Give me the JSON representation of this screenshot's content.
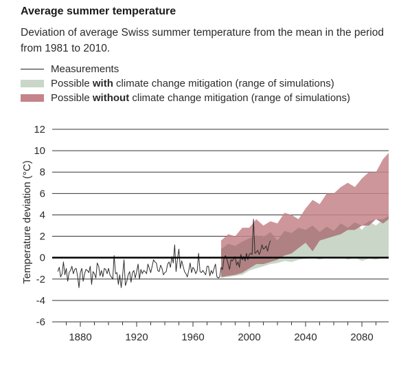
{
  "title": "Average summer temperature",
  "subtitle": "Deviation of average Swiss summer temperature from the mean in the period from 1981 to 2010.",
  "legend": {
    "measurements": "Measurements",
    "with_pre": "Possible ",
    "with_bold": "with",
    "with_post": " climate change mitigation (range of simulations)",
    "without_pre": "Possible ",
    "without_bold": "without",
    "without_post": " climate change mitigation (range of simulations)"
  },
  "colors": {
    "measurements": "#2b2b2b",
    "with_mitigation": "#c9d6c8",
    "without_mitigation": "#c4848a",
    "overlap": "#9c7474",
    "gridline": "#333333",
    "zero_line": "#000000"
  },
  "chart_data": {
    "type": "line",
    "title": "Average summer temperature",
    "xlabel": "",
    "ylabel": "Temperature deviation (°C)",
    "xlim": [
      1860,
      2099
    ],
    "ylim": [
      -6,
      12
    ],
    "y_ticks": [
      12,
      10,
      8,
      6,
      4,
      2,
      0,
      -2,
      -4,
      -6
    ],
    "x_tick_labels": [
      1880,
      1920,
      1960,
      2000,
      2040,
      2080
    ],
    "grid": "horizontal",
    "measurements": {
      "name": "Measurements",
      "x": [
        1864,
        1865,
        1866,
        1867,
        1868,
        1869,
        1870,
        1871,
        1872,
        1873,
        1874,
        1875,
        1876,
        1877,
        1878,
        1879,
        1880,
        1881,
        1882,
        1883,
        1884,
        1885,
        1886,
        1887,
        1888,
        1889,
        1890,
        1891,
        1892,
        1893,
        1894,
        1895,
        1896,
        1897,
        1898,
        1899,
        1900,
        1901,
        1902,
        1903,
        1904,
        1905,
        1906,
        1907,
        1908,
        1909,
        1910,
        1911,
        1912,
        1913,
        1914,
        1915,
        1916,
        1917,
        1918,
        1919,
        1920,
        1921,
        1922,
        1923,
        1924,
        1925,
        1926,
        1927,
        1928,
        1929,
        1930,
        1931,
        1932,
        1933,
        1934,
        1935,
        1936,
        1937,
        1938,
        1939,
        1940,
        1941,
        1942,
        1943,
        1944,
        1945,
        1946,
        1947,
        1948,
        1949,
        1950,
        1951,
        1952,
        1953,
        1954,
        1955,
        1956,
        1957,
        1958,
        1959,
        1960,
        1961,
        1962,
        1963,
        1964,
        1965,
        1966,
        1967,
        1968,
        1969,
        1970,
        1971,
        1972,
        1973,
        1974,
        1975,
        1976,
        1977,
        1978,
        1979,
        1980,
        1981,
        1982,
        1983,
        1984,
        1985,
        1986,
        1987,
        1988,
        1989,
        1990,
        1991,
        1992,
        1993,
        1994,
        1995,
        1996,
        1997,
        1998,
        1999,
        2000,
        2001,
        2002,
        2003,
        2004,
        2005,
        2006,
        2007,
        2008,
        2009,
        2010,
        2011,
        2012,
        2013,
        2014,
        2015
      ],
      "y": [
        -1.3,
        -0.9,
        -1.8,
        -1.5,
        -0.4,
        -1.6,
        -1.0,
        -2.2,
        -1.4,
        -1.2,
        -0.8,
        -1.5,
        -1.1,
        -1.0,
        -1.7,
        -2.8,
        -1.4,
        -1.0,
        -2.2,
        -1.5,
        -1.1,
        -1.2,
        -1.4,
        -0.8,
        -2.5,
        -1.3,
        -1.5,
        -1.9,
        -0.5,
        -0.8,
        -1.7,
        -1.2,
        -1.8,
        -1.0,
        -1.1,
        -1.5,
        -1.0,
        -1.6,
        -1.8,
        -2.0,
        0.2,
        -1.5,
        -1.4,
        -2.5,
        -1.6,
        -2.8,
        -1.7,
        -0.2,
        -2.6,
        -2.2,
        -1.6,
        -1.3,
        -2.3,
        -1.4,
        -1.2,
        -1.9,
        -1.3,
        -0.6,
        -2.0,
        -1.1,
        -1.5,
        -1.2,
        -1.3,
        -1.5,
        -0.6,
        -1.0,
        -1.4,
        -0.8,
        -0.2,
        -0.4,
        -0.5,
        -1.2,
        -1.3,
        -0.7,
        -1.0,
        -1.6,
        -1.4,
        -1.3,
        -0.6,
        -0.4,
        -0.9,
        0.1,
        -0.5,
        1.2,
        -1.3,
        -0.1,
        0.8,
        -1.0,
        -0.3,
        -0.8,
        -1.3,
        -1.5,
        -1.8,
        -1.2,
        -0.5,
        -1.4,
        -0.9,
        -1.1,
        -1.5,
        -1.2,
        0.4,
        -1.3,
        -1.4,
        -1.2,
        -1.4,
        -1.6,
        -0.8,
        -0.8,
        -1.7,
        -1.2,
        -1.5,
        -1.0,
        -0.6,
        -1.8,
        -1.9,
        -1.8,
        -0.9,
        -1.1,
        -0.1,
        0.2,
        -0.1,
        -0.6,
        -1.1,
        -0.2,
        -0.3,
        -0.1,
        0.1,
        -0.7,
        -0.4,
        -0.9,
        0.3,
        -0.2,
        0.1,
        -0.3,
        0.4,
        -0.2,
        0.3,
        0.4,
        0.3,
        3.6,
        0.4,
        0.5,
        0.7,
        0.3,
        0.6,
        1.2,
        0.8,
        0.9,
        1.1,
        0.6,
        1.2,
        1.6
      ]
    },
    "with_mitigation": {
      "name": "Possible with climate change mitigation (range of simulations)",
      "x": [
        1980,
        1985,
        1990,
        1995,
        2000,
        2005,
        2010,
        2015,
        2020,
        2025,
        2030,
        2035,
        2040,
        2045,
        2050,
        2055,
        2060,
        2065,
        2070,
        2075,
        2080,
        2085,
        2090,
        2095,
        2099
      ],
      "upper": [
        0.8,
        1.3,
        1.1,
        1.5,
        1.8,
        2.1,
        1.9,
        2.4,
        1.6,
        2.5,
        2.3,
        2.8,
        2.6,
        3.0,
        2.4,
        2.9,
        2.5,
        3.2,
        2.8,
        3.3,
        2.6,
        3.4,
        3.0,
        3.6,
        3.9
      ],
      "lower": [
        -1.9,
        -1.8,
        -1.7,
        -1.6,
        -1.2,
        -1.0,
        -0.8,
        -0.6,
        -0.5,
        -0.3,
        -0.4,
        -0.2,
        -0.1,
        0.0,
        -0.2,
        0.0,
        -0.1,
        0.1,
        -0.2,
        0.0,
        -0.3,
        -0.1,
        -0.2,
        0.0,
        -0.1
      ]
    },
    "without_mitigation": {
      "name": "Possible without climate change mitigation (range of simulations)",
      "x": [
        1980,
        1985,
        1990,
        1995,
        2000,
        2005,
        2010,
        2015,
        2020,
        2025,
        2030,
        2035,
        2040,
        2045,
        2050,
        2055,
        2060,
        2065,
        2070,
        2075,
        2080,
        2085,
        2090,
        2095,
        2099
      ],
      "upper": [
        1.6,
        2.2,
        2.0,
        2.8,
        2.8,
        3.6,
        3.0,
        3.4,
        3.2,
        4.2,
        4.0,
        3.6,
        4.6,
        5.4,
        5.0,
        6.0,
        6.0,
        6.6,
        7.0,
        6.6,
        7.4,
        8.0,
        8.0,
        9.2,
        9.8
      ],
      "lower": [
        -1.8,
        -1.7,
        -1.6,
        -1.4,
        -1.0,
        -0.6,
        -0.6,
        -0.4,
        -0.2,
        0.2,
        0.4,
        0.9,
        1.4,
        0.6,
        1.6,
        1.8,
        2.0,
        2.2,
        2.6,
        2.6,
        3.0,
        3.0,
        3.6,
        3.2,
        3.6
      ]
    }
  }
}
